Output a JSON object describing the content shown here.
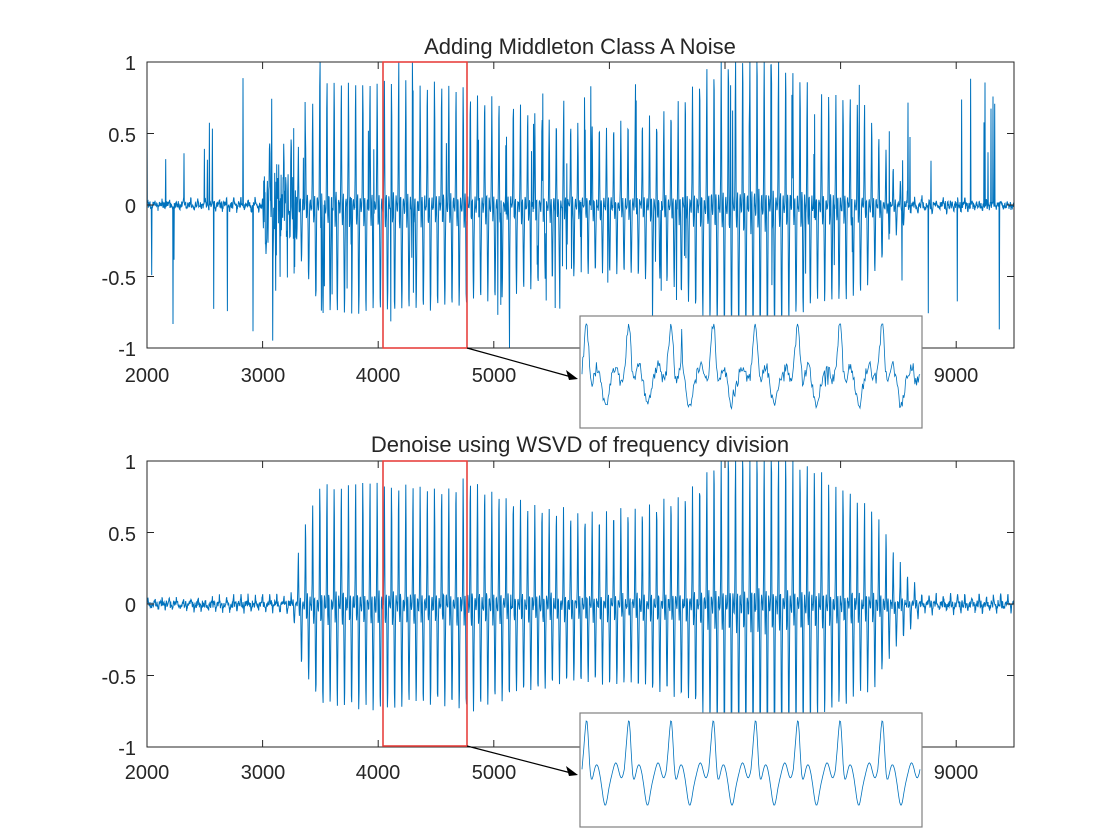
{
  "chart_data": [
    {
      "type": "line",
      "title": "Adding Middleton Class A Noise",
      "xlim": [
        2000,
        9500
      ],
      "ylim": [
        -1,
        1
      ],
      "xticks": [
        2000,
        3000,
        4000,
        5000,
        6000,
        7000,
        8000,
        9000
      ],
      "xtick_labels": [
        "2000",
        "3000",
        "4000",
        "5000",
        "",
        "",
        "",
        "9000"
      ],
      "yticks": [
        -1,
        -0.5,
        0,
        0.5,
        1
      ],
      "ytick_labels": [
        "-1",
        "-0.5",
        "0",
        "0.5",
        "1"
      ],
      "grid": false,
      "line_color": "#0072BD",
      "highlight_box": {
        "x": [
          4050,
          4780
        ],
        "y": [
          -0.98,
          1.0
        ],
        "color": "#E8423F"
      },
      "inset": {
        "shows_range_x": [
          4050,
          4780
        ],
        "noisy": true
      },
      "series": [
        {
          "kind": "voiced-waveform-envelope",
          "envelope": [
            [
              2000,
              0.02
            ],
            [
              3000,
              0.04
            ],
            [
              3050,
              0.3
            ],
            [
              3150,
              0.25
            ],
            [
              3300,
              0.3
            ],
            [
              3500,
              0.72
            ],
            [
              4000,
              0.72
            ],
            [
              4500,
              0.7
            ],
            [
              5000,
              0.62
            ],
            [
              5500,
              0.5
            ],
            [
              6000,
              0.45
            ],
            [
              6500,
              0.52
            ],
            [
              6900,
              0.8
            ],
            [
              7300,
              0.92
            ],
            [
              7800,
              0.65
            ],
            [
              8200,
              0.6
            ],
            [
              8400,
              0.3
            ],
            [
              8600,
              0.05
            ],
            [
              9500,
              0.02
            ]
          ],
          "impulse_noise": true
        }
      ]
    },
    {
      "type": "line",
      "title": "Denoise using WSVD of frequency division",
      "xlim": [
        2000,
        9500
      ],
      "ylim": [
        -1,
        1
      ],
      "xticks": [
        2000,
        3000,
        4000,
        5000,
        6000,
        7000,
        8000,
        9000
      ],
      "xtick_labels": [
        "2000",
        "3000",
        "4000",
        "5000",
        "",
        "",
        "",
        "9000"
      ],
      "yticks": [
        -1,
        -0.5,
        0,
        0.5,
        1
      ],
      "ytick_labels": [
        "-1",
        "-0.5",
        "0",
        "0.5",
        "1"
      ],
      "grid": false,
      "line_color": "#0072BD",
      "highlight_box": {
        "x": [
          4050,
          4780
        ],
        "y": [
          -0.98,
          1.0
        ],
        "color": "#E8423F"
      },
      "inset": {
        "shows_range_x": [
          4050,
          4780
        ],
        "noisy": false
      },
      "series": [
        {
          "kind": "voiced-waveform-envelope",
          "envelope": [
            [
              2000,
              0.03
            ],
            [
              3250,
              0.05
            ],
            [
              3350,
              0.45
            ],
            [
              3500,
              0.68
            ],
            [
              4000,
              0.7
            ],
            [
              4500,
              0.66
            ],
            [
              4800,
              0.72
            ],
            [
              5200,
              0.6
            ],
            [
              5700,
              0.52
            ],
            [
              6300,
              0.55
            ],
            [
              6700,
              0.65
            ],
            [
              7000,
              0.9
            ],
            [
              7400,
              0.95
            ],
            [
              7900,
              0.72
            ],
            [
              8300,
              0.55
            ],
            [
              8500,
              0.25
            ],
            [
              8700,
              0.06
            ],
            [
              9500,
              0.04
            ]
          ],
          "impulse_noise": false
        }
      ]
    }
  ]
}
